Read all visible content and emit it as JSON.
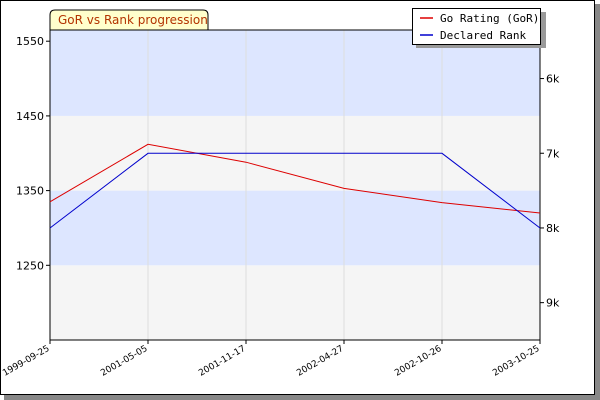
{
  "chart_data": {
    "type": "line",
    "title": "GoR vs Rank progression",
    "categories": [
      "1999-09-25",
      "2001-05-05",
      "2001-11-17",
      "2002-04-27",
      "2002-10-26",
      "2003-10-25"
    ],
    "series": [
      {
        "name": "Go Rating (GoR)",
        "color": "#dd0000",
        "axis": "left",
        "values": [
          1335,
          1412,
          1388,
          1353,
          1334,
          1320
        ]
      },
      {
        "name": "Declared Rank",
        "color": "#0000cc",
        "axis": "right",
        "values": [
          "8k",
          "7k",
          "7k",
          "7k",
          "7k",
          "8k"
        ]
      }
    ],
    "y_left": {
      "ticks": [
        1250,
        1350,
        1450,
        1550
      ],
      "ylim": [
        1150,
        1565
      ]
    },
    "y_right": {
      "ticks": [
        "9k",
        "8k",
        "7k",
        "6k"
      ]
    },
    "legend": {
      "placement": "top-right"
    },
    "bands": true,
    "vertical_grid": true
  },
  "colors": {
    "band_blue": "#dde6ff",
    "band_gray": "#f5f5f5",
    "title_fill": "#ffffcc",
    "title_text": "#b33300",
    "frame": "#000000"
  }
}
